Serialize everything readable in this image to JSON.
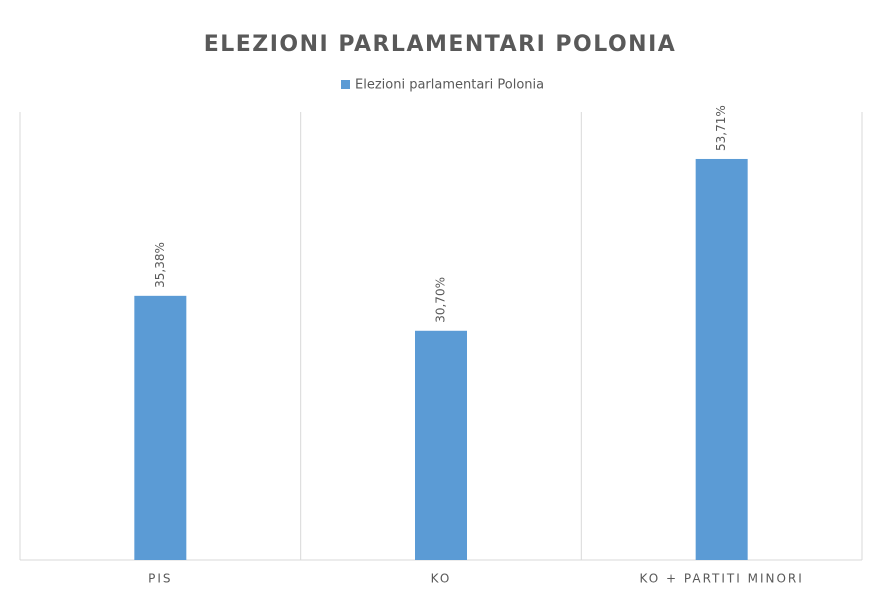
{
  "chart_data": {
    "type": "bar",
    "title": "ELEZIONI PARLAMENTARI POLONIA",
    "categories": [
      "PIS",
      "KO",
      "KO + PARTITI MINORI"
    ],
    "series": [
      {
        "name": "Elezioni parlamentari Polonia",
        "color": "#5b9bd5",
        "values": [
          35.38,
          30.7,
          53.71
        ],
        "value_labels": [
          "35,38%",
          "30,70%",
          "53,71%"
        ]
      }
    ],
    "ylim": [
      0,
      60
    ],
    "legend": "top"
  }
}
